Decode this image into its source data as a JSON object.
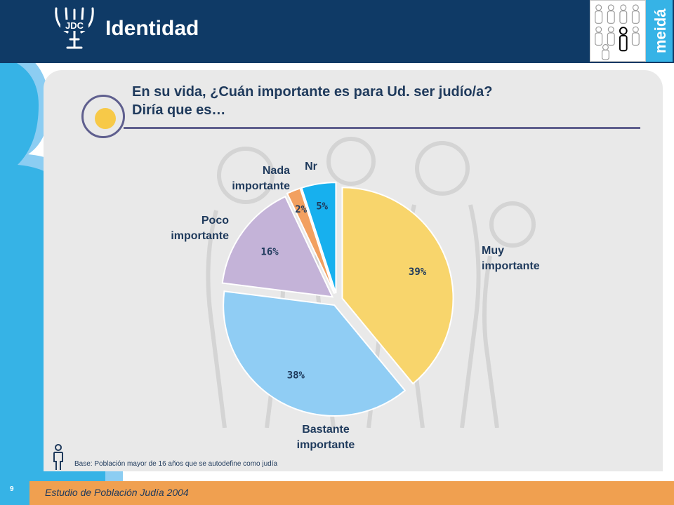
{
  "header": {
    "title": "Identidad",
    "logo_text": "JDC",
    "brand_text": "meidá"
  },
  "question": {
    "line1": "En su vida, ¿Cuán importante es para Ud. ser judío/a?",
    "line2": "Diría que es…"
  },
  "chart_data": {
    "type": "pie",
    "slices": [
      {
        "name": "Muy importante",
        "label_lines": [
          "Muy",
          "importante"
        ],
        "value": 39,
        "pct_label": "39%",
        "color": "#f8d56c"
      },
      {
        "name": "Bastante importante",
        "label_lines": [
          "Bastante",
          "importante"
        ],
        "value": 38,
        "pct_label": "38%",
        "color": "#90cdf4"
      },
      {
        "name": "Poco importante",
        "label_lines": [
          "Poco",
          "importante"
        ],
        "value": 16,
        "pct_label": "16%",
        "color": "#c4b3d8"
      },
      {
        "name": "Nada importante",
        "label_lines": [
          "Nada",
          "importante"
        ],
        "value": 2,
        "pct_label": "2%",
        "color": "#f2a060"
      },
      {
        "name": "Nr",
        "label_lines": [
          "Nr"
        ],
        "value": 5,
        "pct_label": "5%",
        "color": "#17b0ee"
      }
    ]
  },
  "footnote": {
    "base": "Base: Población mayor de 16 años que se autodefine como judía"
  },
  "footer": {
    "study": "Estudio de Población Judía 2004",
    "page_number": "9"
  },
  "colors": {
    "header_bg": "#0f3a66",
    "accent_blue": "#36b3e6",
    "footer_orange": "#f0a050",
    "panel_bg": "#e9e9e9",
    "text_navy": "#1f3a5c"
  }
}
